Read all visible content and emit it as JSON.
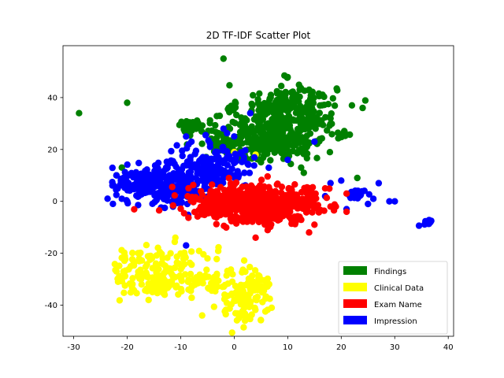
{
  "chart_data": {
    "type": "scatter",
    "title": "2D TF-IDF Scatter Plot",
    "xlabel": "",
    "ylabel": "",
    "xlim": [
      -32,
      41
    ],
    "ylim": [
      -52,
      60
    ],
    "x_ticks": [
      -30,
      -20,
      -10,
      0,
      10,
      20,
      30,
      40
    ],
    "y_ticks": [
      -40,
      -20,
      0,
      20,
      40
    ],
    "grid": false,
    "legend_position": "lower-right",
    "series": [
      {
        "name": "Findings",
        "color": "#008000",
        "clusters": [
          {
            "cx": 10,
            "cy": 35,
            "sx": 4.5,
            "sy": 5,
            "n": 260
          },
          {
            "cx": 8,
            "cy": 23,
            "sx": 4.5,
            "sy": 4,
            "n": 200
          },
          {
            "cx": 1,
            "cy": 24,
            "sx": 3,
            "sy": 4,
            "n": 60
          },
          {
            "cx": -3,
            "cy": 22,
            "sx": 2,
            "sy": 3,
            "n": 25
          },
          {
            "cx": -8,
            "cy": 29,
            "sx": 1.2,
            "sy": 1.1,
            "n": 50
          },
          {
            "cx": 20.5,
            "cy": 26,
            "sx": 0.6,
            "sy": 0.6,
            "n": 12
          }
        ],
        "points": [
          [
            -29,
            34
          ],
          [
            -20,
            38
          ],
          [
            -2,
            55
          ],
          [
            18,
            32
          ],
          [
            -22,
            10
          ],
          [
            -21,
            13
          ],
          [
            23,
            9
          ],
          [
            24,
            36
          ],
          [
            22,
            37
          ],
          [
            14,
            43
          ],
          [
            0,
            24
          ],
          [
            13,
            11
          ],
          [
            16,
            24
          ],
          [
            12.5,
            13
          ]
        ]
      },
      {
        "name": "Clinical Data",
        "color": "#FFFF00",
        "clusters": [
          {
            "cx": -16,
            "cy": -27,
            "sx": 3.5,
            "sy": 4.5,
            "n": 110
          },
          {
            "cx": -6,
            "cy": -28,
            "sx": 3.5,
            "sy": 5,
            "n": 70
          },
          {
            "cx": 2,
            "cy": -38,
            "sx": 2.5,
            "sy": 4.5,
            "n": 100
          },
          {
            "cx": -14,
            "cy": -33,
            "sx": 1.2,
            "sy": 1.0,
            "n": 40
          },
          {
            "cx": 4,
            "cy": -32,
            "sx": 1.5,
            "sy": 2,
            "n": 40
          }
        ],
        "points": [
          [
            -11,
            -14
          ],
          [
            -16,
            -38
          ],
          [
            -13,
            -36
          ],
          [
            -6,
            -44
          ],
          [
            2,
            -44
          ],
          [
            7,
            -41
          ],
          [
            -22,
            -27
          ],
          [
            -5,
            -22
          ],
          [
            0,
            19
          ],
          [
            4,
            18
          ]
        ]
      },
      {
        "name": "Impression",
        "color": "#0000FF",
        "clusters": [
          {
            "cx": -15,
            "cy": 7,
            "sx": 3.5,
            "sy": 3.5,
            "n": 230
          },
          {
            "cx": -4,
            "cy": 13,
            "sx": 4,
            "sy": 4,
            "n": 170
          },
          {
            "cx": -10,
            "cy": 4,
            "sx": 2.5,
            "sy": 3,
            "n": 60
          },
          {
            "cx": 23,
            "cy": 3,
            "sx": 0.9,
            "sy": 0.8,
            "n": 28
          },
          {
            "cx": 36.5,
            "cy": -8,
            "sx": 0.5,
            "sy": 0.5,
            "n": 14
          }
        ],
        "points": [
          [
            -9,
            -17
          ],
          [
            -8,
            23
          ],
          [
            0,
            25
          ],
          [
            3,
            34
          ],
          [
            -2,
            28
          ],
          [
            15,
            23
          ],
          [
            10,
            16
          ],
          [
            18,
            7
          ],
          [
            20,
            8
          ],
          [
            17,
            2
          ],
          [
            21,
            -3
          ],
          [
            25,
            -1
          ],
          [
            27,
            7
          ],
          [
            29,
            0
          ],
          [
            30,
            0
          ],
          [
            26,
            1
          ],
          [
            -21,
            1
          ],
          [
            -20,
            0
          ],
          [
            -22,
            10
          ],
          [
            -9,
            25
          ]
        ]
      },
      {
        "name": "Exam Name",
        "color": "#FF0000",
        "clusters": [
          {
            "cx": 2,
            "cy": 0,
            "sx": 5,
            "sy": 3.5,
            "n": 340
          },
          {
            "cx": 7,
            "cy": -3,
            "sx": 4.5,
            "sy": 4,
            "n": 160
          },
          {
            "cx": 12,
            "cy": 0,
            "sx": 2.5,
            "sy": 3,
            "n": 60
          },
          {
            "cx": -4,
            "cy": -3,
            "sx": 2,
            "sy": 2,
            "n": 50
          }
        ],
        "points": [
          [
            17,
            5
          ],
          [
            21,
            3
          ],
          [
            19,
            -2
          ],
          [
            21,
            -4
          ],
          [
            18,
            -2
          ],
          [
            15,
            -9
          ],
          [
            14,
            -12
          ],
          [
            4,
            -14
          ],
          [
            -6,
            -5
          ]
        ]
      }
    ],
    "legend": [
      {
        "label": "Findings",
        "color": "#008000"
      },
      {
        "label": "Clinical Data",
        "color": "#FFFF00"
      },
      {
        "label": "Exam Name",
        "color": "#FF0000"
      },
      {
        "label": "Impression",
        "color": "#0000FF"
      }
    ]
  }
}
